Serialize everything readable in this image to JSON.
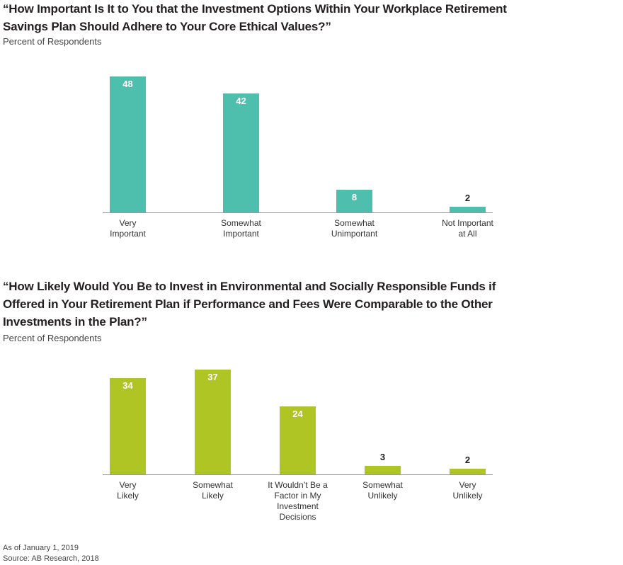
{
  "chart_data": [
    {
      "type": "bar",
      "title": "“How Important Is It to You that the Investment Options Within Your Workplace Retirement\nSavings Plan Should Adhere to Your Core Ethical Values?”",
      "subtitle": "Percent of Respondents",
      "categories": [
        "Very\nImportant",
        "Somewhat\nImportant",
        "Somewhat\nUnimportant",
        "Not Important\nat All"
      ],
      "values": [
        48,
        42,
        8,
        2
      ],
      "color": "#4fbfad"
    },
    {
      "type": "bar",
      "title": "“How Likely Would You Be to Invest in Environmental and Socially Responsible Funds if\nOffered in Your Retirement Plan if Performance and Fees Were Comparable to the Other\nInvestments in the Plan?”",
      "subtitle": "Percent of Respondents",
      "categories": [
        "Very\nLikely",
        "Somewhat\nLikely",
        "It Wouldn’t Be a\nFactor in My\nInvestment\nDecisions",
        "Somewhat\nUnlikely",
        "Very\nUnlikely"
      ],
      "values": [
        34,
        37,
        24,
        3,
        2
      ],
      "color": "#afc523"
    }
  ],
  "notes": [
    "As of January 1, 2019",
    "Source: AB Research, 2018"
  ]
}
